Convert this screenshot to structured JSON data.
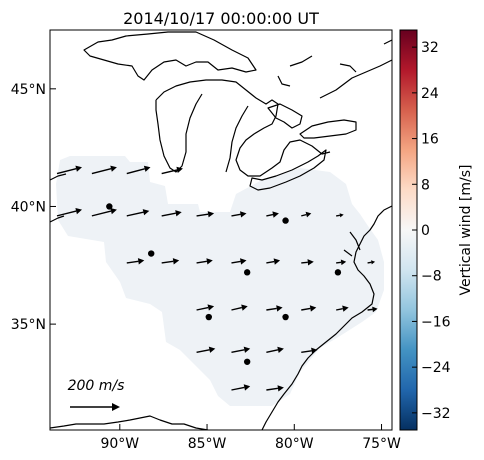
{
  "title": "2014/10/17 00:00:00 UT",
  "map": {
    "lon_range": [
      -94,
      -74.4
    ],
    "lat_range": [
      30.5,
      47.5
    ],
    "x_ticks": [
      {
        "value": -90,
        "label": "90°W"
      },
      {
        "value": -85,
        "label": "85°W"
      },
      {
        "value": -80,
        "label": "80°W"
      },
      {
        "value": -75,
        "label": "75°W"
      }
    ],
    "y_ticks": [
      {
        "value": 45,
        "label": "45°N"
      },
      {
        "value": 40,
        "label": "40°N"
      },
      {
        "value": 35,
        "label": "35°N"
      }
    ],
    "stations": [
      {
        "lon": -90.6,
        "lat": 40.0
      },
      {
        "lon": -88.2,
        "lat": 38.0
      },
      {
        "lon": -84.9,
        "lat": 35.3
      },
      {
        "lon": -82.7,
        "lat": 37.2
      },
      {
        "lon": -82.7,
        "lat": 33.4
      },
      {
        "lon": -80.5,
        "lat": 39.4
      },
      {
        "lon": -80.5,
        "lat": 35.3
      },
      {
        "lon": -77.5,
        "lat": 37.2
      }
    ],
    "reference_vector": {
      "label": "200 m/s",
      "speed": 200
    },
    "colors": {
      "coverage": "#eef2f6",
      "coast": "#000000",
      "arrow": "#000000",
      "station": "#000000"
    }
  },
  "wind_vectors": [
    {
      "lon": -93.6,
      "lat": 41.4,
      "u": 100,
      "v": 25
    },
    {
      "lon": -91.6,
      "lat": 41.4,
      "u": 100,
      "v": 25
    },
    {
      "lon": -89.6,
      "lat": 41.4,
      "u": 95,
      "v": 25
    },
    {
      "lon": -87.6,
      "lat": 41.4,
      "u": 85,
      "v": 20
    },
    {
      "lon": -93.6,
      "lat": 39.6,
      "u": 100,
      "v": 25
    },
    {
      "lon": -91.6,
      "lat": 39.6,
      "u": 100,
      "v": 25
    },
    {
      "lon": -89.6,
      "lat": 39.6,
      "u": 90,
      "v": 20
    },
    {
      "lon": -87.6,
      "lat": 39.6,
      "u": 80,
      "v": 15
    },
    {
      "lon": -85.6,
      "lat": 39.6,
      "u": 70,
      "v": 10
    },
    {
      "lon": -83.6,
      "lat": 39.6,
      "u": 60,
      "v": 10
    },
    {
      "lon": -81.6,
      "lat": 39.6,
      "u": 50,
      "v": 10
    },
    {
      "lon": -79.6,
      "lat": 39.6,
      "u": 40,
      "v": 10
    },
    {
      "lon": -77.6,
      "lat": 39.6,
      "u": 30,
      "v": 5
    },
    {
      "lon": -89.6,
      "lat": 37.6,
      "u": 70,
      "v": 10
    },
    {
      "lon": -87.6,
      "lat": 37.6,
      "u": 70,
      "v": 10
    },
    {
      "lon": -85.6,
      "lat": 37.6,
      "u": 65,
      "v": 10
    },
    {
      "lon": -83.6,
      "lat": 37.6,
      "u": 60,
      "v": 10
    },
    {
      "lon": -81.6,
      "lat": 37.6,
      "u": 55,
      "v": 10
    },
    {
      "lon": -79.6,
      "lat": 37.6,
      "u": 50,
      "v": 5
    },
    {
      "lon": -77.6,
      "lat": 37.6,
      "u": 40,
      "v": 5
    },
    {
      "lon": -75.8,
      "lat": 37.6,
      "u": 30,
      "v": 5
    },
    {
      "lon": -85.6,
      "lat": 35.6,
      "u": 70,
      "v": 15
    },
    {
      "lon": -83.6,
      "lat": 35.6,
      "u": 65,
      "v": 15
    },
    {
      "lon": -81.6,
      "lat": 35.6,
      "u": 65,
      "v": 10
    },
    {
      "lon": -79.6,
      "lat": 35.6,
      "u": 60,
      "v": 10
    },
    {
      "lon": -77.6,
      "lat": 35.6,
      "u": 50,
      "v": 10
    },
    {
      "lon": -75.8,
      "lat": 35.6,
      "u": 40,
      "v": 5
    },
    {
      "lon": -85.6,
      "lat": 33.8,
      "u": 75,
      "v": 15
    },
    {
      "lon": -83.6,
      "lat": 33.8,
      "u": 75,
      "v": 15
    },
    {
      "lon": -81.6,
      "lat": 33.8,
      "u": 70,
      "v": 15
    },
    {
      "lon": -79.6,
      "lat": 33.8,
      "u": 65,
      "v": 10
    },
    {
      "lon": -83.6,
      "lat": 32.2,
      "u": 75,
      "v": 15
    },
    {
      "lon": -81.6,
      "lat": 32.2,
      "u": 70,
      "v": 10
    }
  ],
  "colorbar": {
    "label": "Vertical wind [m/s]",
    "range": [
      -35,
      35
    ],
    "ticks": [
      {
        "value": 32,
        "label": "32"
      },
      {
        "value": 24,
        "label": "24"
      },
      {
        "value": 16,
        "label": "16"
      },
      {
        "value": 8,
        "label": "8"
      },
      {
        "value": 0,
        "label": "0"
      },
      {
        "value": -8,
        "label": "−8"
      },
      {
        "value": -16,
        "label": "−16"
      },
      {
        "value": -24,
        "label": "−24"
      },
      {
        "value": -32,
        "label": "−32"
      }
    ],
    "stops": [
      "#67001f",
      "#b2182b",
      "#d6604d",
      "#f4a582",
      "#fddbc7",
      "#f7f7f7",
      "#d1e5f0",
      "#92c5de",
      "#4393c3",
      "#2166ac",
      "#053061"
    ]
  }
}
